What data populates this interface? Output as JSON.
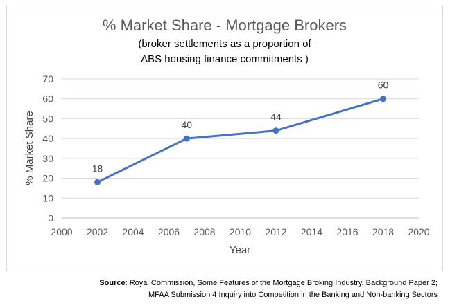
{
  "chart_data": {
    "type": "line",
    "title": "% Market Share - Mortgage Brokers",
    "subtitle_line1": "(broker settlements as a proportion of",
    "subtitle_line2": "ABS housing finance commitments )",
    "xlabel": "Year",
    "ylabel": "% Market Share",
    "xlim": [
      2000,
      2020
    ],
    "ylim": [
      0,
      70
    ],
    "x_ticks": [
      2000,
      2002,
      2004,
      2006,
      2008,
      2010,
      2012,
      2014,
      2016,
      2018,
      2020
    ],
    "y_ticks": [
      0,
      10,
      20,
      30,
      40,
      50,
      60,
      70
    ],
    "grid": true,
    "legend": "none",
    "series": [
      {
        "x": [
          2002,
          2007,
          2012,
          2018
        ],
        "values": [
          18,
          40,
          44,
          60
        ],
        "data_labels": [
          "18",
          "40",
          "44",
          "60"
        ],
        "color": "#4472c4"
      }
    ]
  },
  "source": {
    "label": "Source",
    "line1_text": ": Royal Commission, Some Features of the Mortgage Broking Industry, Background Paper 2;",
    "line2_text": "MFAA Submission 4 Inquiry into Competition in the Banking and Non-banking Sectors"
  }
}
